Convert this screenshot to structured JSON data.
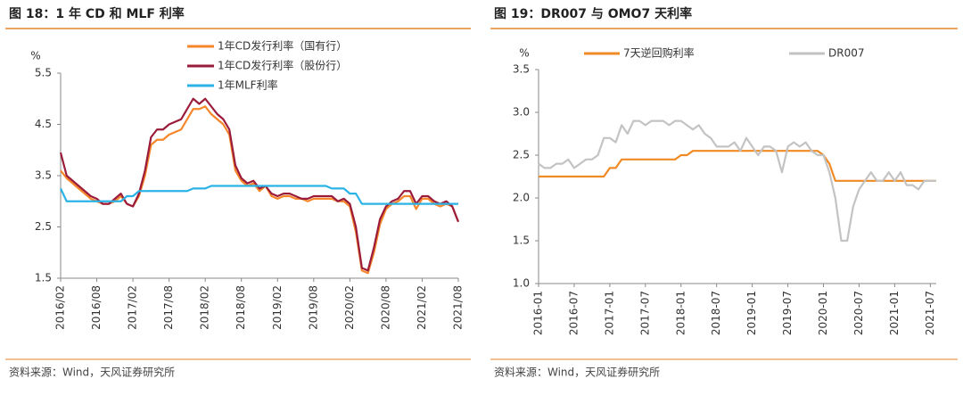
{
  "chart_data": [
    {
      "type": "line",
      "title": "图 18：1 年 CD 和 MLF 利率",
      "ylabel": "%",
      "source": "资料来源：Wind，天风证券研究所",
      "x": [
        "2016/02",
        "2016/03",
        "2016/04",
        "2016/05",
        "2016/06",
        "2016/07",
        "2016/08",
        "2016/09",
        "2016/10",
        "2016/11",
        "2016/12",
        "2017/01",
        "2017/02",
        "2017/03",
        "2017/04",
        "2017/05",
        "2017/06",
        "2017/07",
        "2017/08",
        "2017/09",
        "2017/10",
        "2017/11",
        "2017/12",
        "2018/01",
        "2018/02",
        "2018/03",
        "2018/04",
        "2018/05",
        "2018/06",
        "2018/07",
        "2018/08",
        "2018/09",
        "2018/10",
        "2018/11",
        "2018/12",
        "2019/01",
        "2019/02",
        "2019/03",
        "2019/04",
        "2019/05",
        "2019/06",
        "2019/07",
        "2019/08",
        "2019/09",
        "2019/10",
        "2019/11",
        "2019/12",
        "2020/01",
        "2020/02",
        "2020/03",
        "2020/04",
        "2020/05",
        "2020/06",
        "2020/07",
        "2020/08",
        "2020/09",
        "2020/10",
        "2020/11",
        "2020/12",
        "2021/01",
        "2021/02",
        "2021/03",
        "2021/04",
        "2021/05",
        "2021/06",
        "2021/07",
        "2021/08"
      ],
      "xticks": [
        "2016/02",
        "2016/08",
        "2017/02",
        "2017/08",
        "2018/02",
        "2018/08",
        "2019/02",
        "2019/08",
        "2020/02",
        "2020/08",
        "2021/02",
        "2021/08"
      ],
      "ylim": [
        1.5,
        5.5
      ],
      "yticks": [
        1.5,
        2.5,
        3.5,
        4.5,
        5.5
      ],
      "legend": "upper center",
      "series": [
        {
          "name": "1年CD发行利率（国有行）",
          "color": "#f5862a",
          "values": [
            3.6,
            3.45,
            3.35,
            3.25,
            3.15,
            3.05,
            3.0,
            2.95,
            2.95,
            3.0,
            3.1,
            2.95,
            2.9,
            3.1,
            3.5,
            4.1,
            4.2,
            4.2,
            4.3,
            4.35,
            4.4,
            4.6,
            4.8,
            4.8,
            4.85,
            4.7,
            4.6,
            4.5,
            4.3,
            3.6,
            3.4,
            3.3,
            3.35,
            3.2,
            3.3,
            3.1,
            3.05,
            3.1,
            3.1,
            3.05,
            3.05,
            3.0,
            3.05,
            3.05,
            3.05,
            3.05,
            3.0,
            3.0,
            2.9,
            2.4,
            1.65,
            1.6,
            2.0,
            2.55,
            2.85,
            2.95,
            3.0,
            3.1,
            3.1,
            2.85,
            3.05,
            3.05,
            2.95,
            2.9,
            2.95,
            2.9,
            2.6
          ]
        },
        {
          "name": "1年CD发行利率（股份行）",
          "color": "#9b1b3b",
          "values": [
            3.95,
            3.5,
            3.4,
            3.3,
            3.2,
            3.1,
            3.05,
            2.95,
            2.95,
            3.05,
            3.15,
            2.95,
            2.9,
            3.15,
            3.6,
            4.25,
            4.4,
            4.4,
            4.5,
            4.55,
            4.6,
            4.8,
            5.0,
            4.9,
            5.0,
            4.85,
            4.7,
            4.6,
            4.4,
            3.7,
            3.45,
            3.35,
            3.4,
            3.25,
            3.3,
            3.15,
            3.1,
            3.15,
            3.15,
            3.1,
            3.05,
            3.05,
            3.1,
            3.1,
            3.1,
            3.1,
            3.0,
            3.05,
            2.95,
            2.5,
            1.7,
            1.65,
            2.1,
            2.65,
            2.9,
            3.0,
            3.05,
            3.2,
            3.2,
            2.95,
            3.1,
            3.1,
            3.0,
            2.95,
            3.0,
            2.9,
            2.6
          ]
        },
        {
          "name": "1年MLF利率",
          "color": "#2bb3e6",
          "values": [
            3.25,
            3.0,
            3.0,
            3.0,
            3.0,
            3.0,
            3.0,
            3.0,
            3.0,
            3.0,
            3.0,
            3.1,
            3.1,
            3.2,
            3.2,
            3.2,
            3.2,
            3.2,
            3.2,
            3.2,
            3.2,
            3.2,
            3.25,
            3.25,
            3.25,
            3.3,
            3.3,
            3.3,
            3.3,
            3.3,
            3.3,
            3.3,
            3.3,
            3.3,
            3.3,
            3.3,
            3.3,
            3.3,
            3.3,
            3.3,
            3.3,
            3.3,
            3.3,
            3.3,
            3.3,
            3.25,
            3.25,
            3.25,
            3.15,
            3.15,
            2.95,
            2.95,
            2.95,
            2.95,
            2.95,
            2.95,
            2.95,
            2.95,
            2.95,
            2.95,
            2.95,
            2.95,
            2.95,
            2.95,
            2.95,
            2.95,
            2.95
          ]
        }
      ]
    },
    {
      "type": "line",
      "title": "图 19：DR007 与 OMO7 天利率",
      "ylabel": "%",
      "source": "资料来源：Wind，天风证券研究所",
      "x": [
        "2016-01",
        "2016-02",
        "2016-03",
        "2016-04",
        "2016-05",
        "2016-06",
        "2016-07",
        "2016-08",
        "2016-09",
        "2016-10",
        "2016-11",
        "2016-12",
        "2017-01",
        "2017-02",
        "2017-03",
        "2017-04",
        "2017-05",
        "2017-06",
        "2017-07",
        "2017-08",
        "2017-09",
        "2017-10",
        "2017-11",
        "2017-12",
        "2018-01",
        "2018-02",
        "2018-03",
        "2018-04",
        "2018-05",
        "2018-06",
        "2018-07",
        "2018-08",
        "2018-09",
        "2018-10",
        "2018-11",
        "2018-12",
        "2019-01",
        "2019-02",
        "2019-03",
        "2019-04",
        "2019-05",
        "2019-06",
        "2019-07",
        "2019-08",
        "2019-09",
        "2019-10",
        "2019-11",
        "2019-12",
        "2020-01",
        "2020-02",
        "2020-03",
        "2020-04",
        "2020-05",
        "2020-06",
        "2020-07",
        "2020-08",
        "2020-09",
        "2020-10",
        "2020-11",
        "2020-12",
        "2021-01",
        "2021-02",
        "2021-03",
        "2021-04",
        "2021-05",
        "2021-06",
        "2021-07",
        "2021-08"
      ],
      "xticks": [
        "2016-01",
        "2016-07",
        "2017-01",
        "2017-07",
        "2018-01",
        "2018-07",
        "2019-01",
        "2019-07",
        "2020-01",
        "2020-07",
        "2021-01",
        "2021-07"
      ],
      "ylim": [
        1.0,
        3.5
      ],
      "yticks": [
        {
          "value": 1.0,
          "label": "1.0"
        },
        1.5,
        {
          "value": 2.0,
          "label": "2.0"
        },
        2.5,
        {
          "value": 3.0,
          "label": "3.0"
        },
        3.5
      ],
      "legend": "upper center",
      "series": [
        {
          "name": "7天逆回购利率",
          "color": "#f08a24",
          "values": [
            2.25,
            2.25,
            2.25,
            2.25,
            2.25,
            2.25,
            2.25,
            2.25,
            2.25,
            2.25,
            2.25,
            2.25,
            2.35,
            2.35,
            2.45,
            2.45,
            2.45,
            2.45,
            2.45,
            2.45,
            2.45,
            2.45,
            2.45,
            2.45,
            2.5,
            2.5,
            2.55,
            2.55,
            2.55,
            2.55,
            2.55,
            2.55,
            2.55,
            2.55,
            2.55,
            2.55,
            2.55,
            2.55,
            2.55,
            2.55,
            2.55,
            2.55,
            2.55,
            2.55,
            2.55,
            2.55,
            2.55,
            2.55,
            2.5,
            2.4,
            2.2,
            2.2,
            2.2,
            2.2,
            2.2,
            2.2,
            2.2,
            2.2,
            2.2,
            2.2,
            2.2,
            2.2,
            2.2,
            2.2,
            2.2,
            2.2,
            2.2,
            2.2
          ]
        },
        {
          "name": "DR007",
          "color": "#c3c3c3",
          "values": [
            2.4,
            2.35,
            2.35,
            2.4,
            2.4,
            2.45,
            2.35,
            2.4,
            2.45,
            2.45,
            2.5,
            2.7,
            2.7,
            2.65,
            2.85,
            2.75,
            2.9,
            2.9,
            2.85,
            2.9,
            2.9,
            2.9,
            2.85,
            2.9,
            2.9,
            2.85,
            2.8,
            2.85,
            2.75,
            2.7,
            2.6,
            2.6,
            2.6,
            2.65,
            2.55,
            2.7,
            2.6,
            2.5,
            2.6,
            2.6,
            2.55,
            2.3,
            2.6,
            2.65,
            2.6,
            2.65,
            2.55,
            2.5,
            2.5,
            2.3,
            2.0,
            1.5,
            1.5,
            1.9,
            2.1,
            2.2,
            2.3,
            2.2,
            2.2,
            2.3,
            2.2,
            2.3,
            2.15,
            2.15,
            2.1,
            2.2,
            2.2,
            2.2
          ]
        }
      ]
    }
  ]
}
